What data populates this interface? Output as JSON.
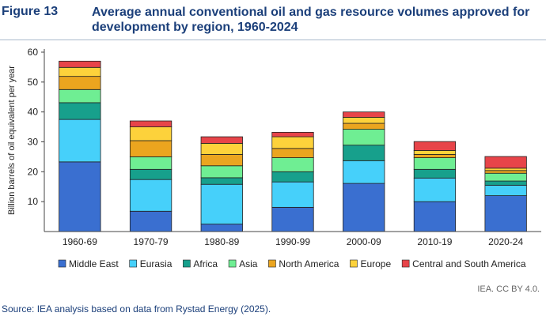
{
  "figure": {
    "number": "Figure 13",
    "title": "Average annual conventional oil and gas resource volumes approved for development by region, 1960-2024",
    "credit": "IEA. CC BY 4.0.",
    "source": "Source: IEA analysis based on data from Rystad Energy (2025)."
  },
  "chart_data": {
    "type": "bar",
    "stacked": true,
    "title": "Average annual conventional oil and gas resource volumes approved for development by region, 1960-2024",
    "ylabel": "Billion barrels of oil equivalent per year",
    "xlabel": "",
    "ylim": [
      0,
      60
    ],
    "yticks": [
      10,
      20,
      30,
      40,
      50,
      60
    ],
    "grid": false,
    "legend_position": "bottom",
    "categories": [
      "1960-69",
      "1970-79",
      "1980-89",
      "1990-99",
      "2000-09",
      "2010-19",
      "2020-24"
    ],
    "series": [
      {
        "name": "Middle East",
        "color": "#3a6fd0",
        "values": [
          23.3,
          6.8,
          2.5,
          8.1,
          16.1,
          10.0,
          12.0
        ]
      },
      {
        "name": "Eurasia",
        "color": "#46d0fa",
        "values": [
          14.2,
          10.6,
          13.3,
          8.5,
          7.6,
          7.9,
          3.5
        ]
      },
      {
        "name": "Africa",
        "color": "#17a08c",
        "values": [
          5.6,
          3.4,
          2.2,
          3.4,
          5.2,
          2.9,
          1.4
        ]
      },
      {
        "name": "Asia",
        "color": "#6fee93",
        "values": [
          4.4,
          4.2,
          4.0,
          4.7,
          5.3,
          3.9,
          2.6
        ]
      },
      {
        "name": "North America",
        "color": "#eba51f",
        "values": [
          4.4,
          5.4,
          3.8,
          3.1,
          2.0,
          1.1,
          0.9
        ]
      },
      {
        "name": "Europe",
        "color": "#fdd23b",
        "values": [
          3.0,
          4.6,
          3.7,
          3.9,
          2.0,
          1.3,
          0.8
        ]
      },
      {
        "name": "Central and South America",
        "color": "#e74449",
        "values": [
          2.1,
          2.0,
          2.2,
          1.5,
          1.8,
          3.0,
          3.9
        ]
      }
    ]
  }
}
